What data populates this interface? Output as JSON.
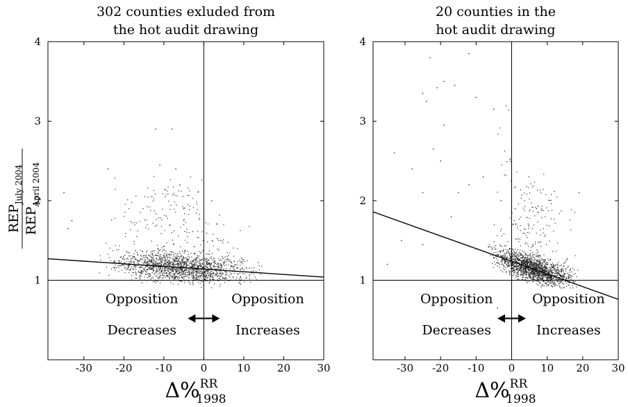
{
  "chart_data": [
    {
      "type": "scatter",
      "title": [
        "302 counties exluded from",
        "the hot audit drawing"
      ],
      "xlabel": {
        "base": "Δ%",
        "sup": "RR",
        "sub": "1998"
      },
      "ylabel": {
        "num_base": "REP",
        "num_sub": "July 2004",
        "den_base": "REP",
        "den_sub": "April 2004"
      },
      "xlim": [
        -39,
        30
      ],
      "ylim": [
        0,
        4
      ],
      "xticks": [
        -30,
        -20,
        -10,
        0,
        10,
        20,
        30
      ],
      "yticks": [
        1,
        2,
        3,
        4
      ],
      "reference_lines": {
        "x": 0,
        "y": 1
      },
      "fit_line": {
        "x": [
          -39,
          30
        ],
        "y": [
          1.27,
          1.04
        ]
      },
      "annotations": [
        {
          "lines": [
            "Opposition",
            "Decreases"
          ],
          "x": -15.5,
          "y": [
            0.71,
            0.32
          ]
        },
        {
          "lines": [
            "Opposition",
            "Increases"
          ],
          "x": 16,
          "y": [
            0.71,
            0.32
          ]
        }
      ],
      "arrow": {
        "x": [
          -4,
          4
        ],
        "y": 0.52
      },
      "cloud": {
        "n": 1700,
        "seed": 17,
        "center_x": -6,
        "spread_x": 11,
        "base_y": 1.13,
        "spread_y": 0.11,
        "tail_scale": 0.25,
        "outliers": [
          [
            -12,
            2.9
          ],
          [
            -8,
            2.9
          ],
          [
            -24,
            2.4
          ],
          [
            -11,
            2.45
          ],
          [
            -7,
            2.4
          ],
          [
            -35,
            2.1
          ],
          [
            -6,
            2.2
          ],
          [
            -13,
            2.05
          ],
          [
            -33,
            1.75
          ],
          [
            -5,
            1.9
          ],
          [
            -34,
            1.65
          ],
          [
            2,
            2.0
          ]
        ]
      }
    },
    {
      "type": "scatter",
      "title": [
        "20 counties in the",
        "hot audit drawing"
      ],
      "xlabel": {
        "base": "Δ%",
        "sup": "RR",
        "sub": "1998"
      },
      "xlim": [
        -39,
        30
      ],
      "ylim": [
        0,
        4
      ],
      "xticks": [
        -30,
        -20,
        -10,
        0,
        10,
        20,
        30
      ],
      "yticks": [
        1,
        2,
        3,
        4
      ],
      "reference_lines": {
        "x": 0,
        "y": 1
      },
      "fit_line": {
        "x": [
          -39,
          30
        ],
        "y": [
          1.86,
          0.76
        ]
      },
      "annotations": [
        {
          "lines": [
            "Opposition",
            "Decreases"
          ],
          "x": -15.5,
          "y": [
            0.71,
            0.32
          ]
        },
        {
          "lines": [
            "Opposition",
            "Increases"
          ],
          "x": 16,
          "y": [
            0.71,
            0.32
          ]
        }
      ],
      "arrow": {
        "x": [
          -4,
          4
        ],
        "y": 0.52
      },
      "cloud": {
        "n": 1800,
        "seed": 53,
        "center_x": 6,
        "spread_x": 7,
        "base_y": 1.06,
        "spread_y": 0.1,
        "tail_scale": 0.45,
        "outliers": [
          [
            -23,
            3.8
          ],
          [
            -12,
            3.85
          ],
          [
            -19,
            3.5
          ],
          [
            -21,
            3.42
          ],
          [
            -16,
            3.45
          ],
          [
            -25,
            3.35
          ],
          [
            -24,
            3.25
          ],
          [
            -10,
            3.3
          ],
          [
            -5,
            3.15
          ],
          [
            -33,
            2.6
          ],
          [
            -19,
            2.95
          ],
          [
            -22,
            2.65
          ],
          [
            -20,
            2.5
          ],
          [
            -28,
            2.4
          ],
          [
            -25,
            2.1
          ],
          [
            -31,
            1.5
          ],
          [
            -35,
            1.2
          ],
          [
            -15,
            2.1
          ],
          [
            -3,
            2.0
          ],
          [
            1,
            1.9
          ],
          [
            -8,
            2.3
          ],
          [
            -12,
            2.2
          ],
          [
            19,
            2.1
          ],
          [
            7,
            1.9
          ],
          [
            -4,
            0.65
          ],
          [
            9,
            0.8
          ],
          [
            -25,
            1.45
          ],
          [
            -17,
            1.8
          ]
        ]
      }
    }
  ]
}
